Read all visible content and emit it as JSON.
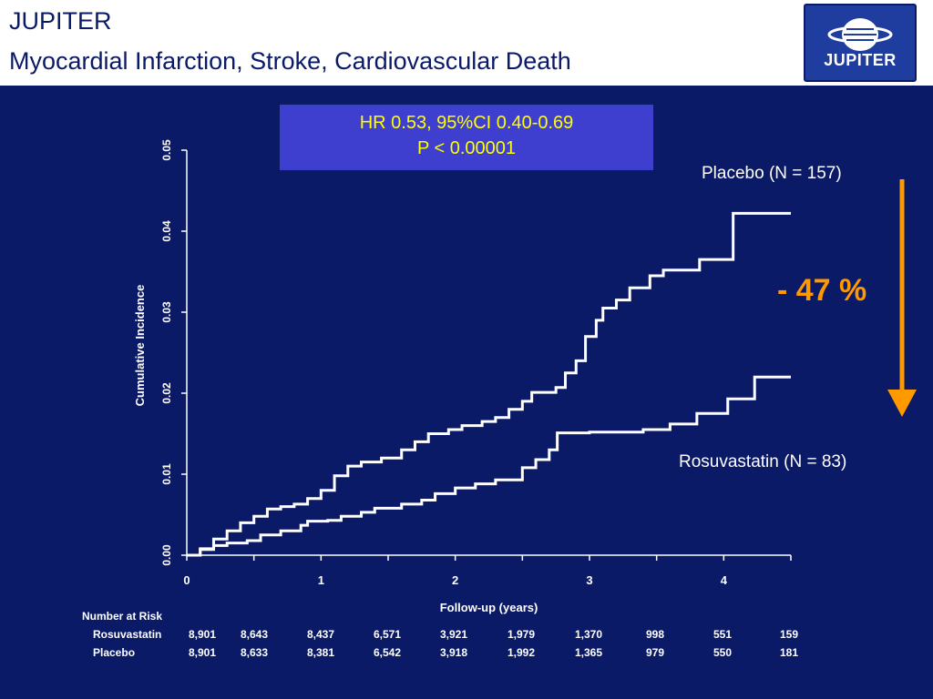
{
  "header": {
    "title_line1": "JUPITER",
    "title_line2": "Myocardial Infarction, Stroke, Cardiovascular Death",
    "logo_text": "JUPITER"
  },
  "stats_box": {
    "line1": "HR 0.53, 95%CI 0.40-0.69",
    "line2": "P < 0.00001"
  },
  "annotations": {
    "reduction": "- 47 %"
  },
  "colors": {
    "background": "#0b1a66",
    "lines": "#ffffff",
    "stats_box": "#3e3ecf",
    "stats_text": "#ffff00",
    "arrow": "#ff9900"
  },
  "chart_data": {
    "type": "line",
    "xlabel": "Follow-up (years)",
    "ylabel": "Cumulative Incidence",
    "xlim": [
      0,
      4.5
    ],
    "ylim": [
      0,
      0.05
    ],
    "xticks": [
      0,
      1,
      2,
      3,
      4
    ],
    "yticks": [
      "0.00",
      "0.01",
      "0.02",
      "0.03",
      "0.04",
      "0.05"
    ],
    "series": [
      {
        "name": "Placebo (N = 157)",
        "points": [
          [
            0,
            0
          ],
          [
            0.1,
            0.0008
          ],
          [
            0.2,
            0.002
          ],
          [
            0.3,
            0.003
          ],
          [
            0.4,
            0.004
          ],
          [
            0.5,
            0.0048
          ],
          [
            0.6,
            0.0057
          ],
          [
            0.7,
            0.006
          ],
          [
            0.8,
            0.0063
          ],
          [
            0.9,
            0.007
          ],
          [
            1.0,
            0.008
          ],
          [
            1.1,
            0.0098
          ],
          [
            1.2,
            0.011
          ],
          [
            1.3,
            0.0115
          ],
          [
            1.45,
            0.012
          ],
          [
            1.6,
            0.013
          ],
          [
            1.7,
            0.014
          ],
          [
            1.8,
            0.015
          ],
          [
            1.95,
            0.0155
          ],
          [
            2.05,
            0.016
          ],
          [
            2.2,
            0.0165
          ],
          [
            2.3,
            0.017
          ],
          [
            2.4,
            0.018
          ],
          [
            2.5,
            0.019
          ],
          [
            2.57,
            0.0201
          ],
          [
            2.75,
            0.0207
          ],
          [
            2.82,
            0.0225
          ],
          [
            2.9,
            0.024
          ],
          [
            2.97,
            0.027
          ],
          [
            3.05,
            0.029
          ],
          [
            3.1,
            0.0305
          ],
          [
            3.2,
            0.0315
          ],
          [
            3.3,
            0.033
          ],
          [
            3.45,
            0.0345
          ],
          [
            3.55,
            0.0352
          ],
          [
            3.82,
            0.0365
          ],
          [
            4.07,
            0.0422
          ],
          [
            4.5,
            0.0422
          ]
        ]
      },
      {
        "name": "Rosuvastatin (N = 83)",
        "points": [
          [
            0,
            0
          ],
          [
            0.1,
            0.0007
          ],
          [
            0.2,
            0.0012
          ],
          [
            0.3,
            0.0015
          ],
          [
            0.45,
            0.0018
          ],
          [
            0.55,
            0.0025
          ],
          [
            0.7,
            0.003
          ],
          [
            0.85,
            0.0037
          ],
          [
            0.9,
            0.0042
          ],
          [
            1.05,
            0.0043
          ],
          [
            1.15,
            0.0048
          ],
          [
            1.3,
            0.0053
          ],
          [
            1.4,
            0.0058
          ],
          [
            1.6,
            0.0063
          ],
          [
            1.75,
            0.0068
          ],
          [
            1.85,
            0.0076
          ],
          [
            2.0,
            0.0083
          ],
          [
            2.15,
            0.0088
          ],
          [
            2.3,
            0.0093
          ],
          [
            2.5,
            0.0108
          ],
          [
            2.6,
            0.0118
          ],
          [
            2.7,
            0.013
          ],
          [
            2.76,
            0.0151
          ],
          [
            3.0,
            0.0152
          ],
          [
            3.4,
            0.0155
          ],
          [
            3.6,
            0.0162
          ],
          [
            3.8,
            0.0175
          ],
          [
            4.03,
            0.0193
          ],
          [
            4.23,
            0.022
          ],
          [
            4.5,
            0.022
          ]
        ]
      }
    ]
  },
  "risk_table": {
    "header": "Number at Risk",
    "rows": [
      {
        "label": "Rosuvastatin",
        "values": [
          "8,901",
          "8,643",
          "8,437",
          "6,571",
          "3,921",
          "1,979",
          "1,370",
          "998",
          "551",
          "159"
        ]
      },
      {
        "label": "Placebo",
        "values": [
          "8,901",
          "8,633",
          "8,381",
          "6,542",
          "3,918",
          "1,992",
          "1,365",
          "979",
          "550",
          "181"
        ]
      }
    ]
  }
}
